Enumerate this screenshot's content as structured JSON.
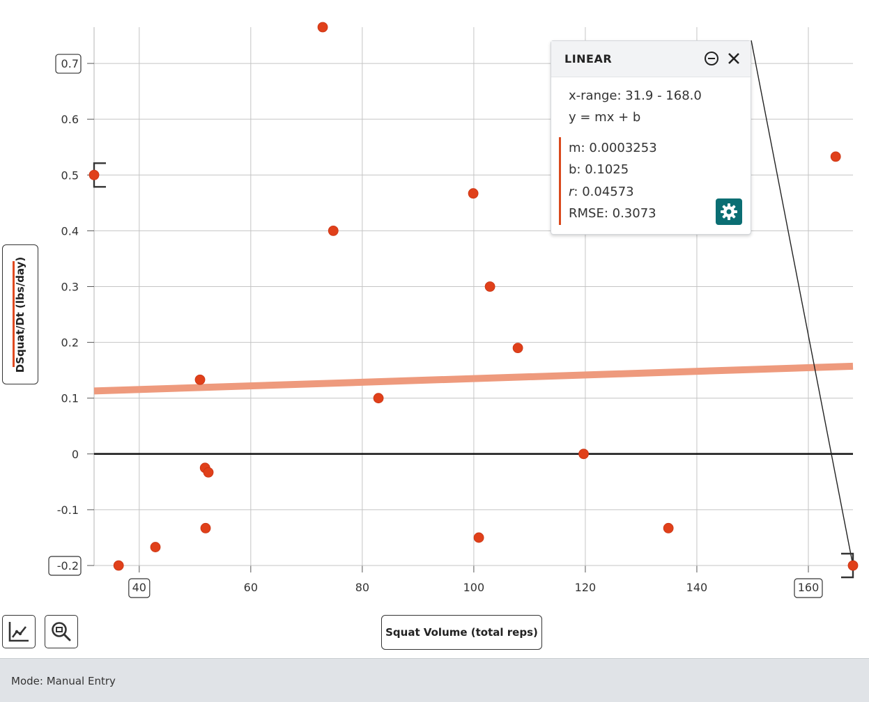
{
  "chart_data": {
    "type": "scatter",
    "xlabel": "Squat Volume (total reps)",
    "ylabel": "DSquat/Dt (lbs/day)",
    "xlim": [
      31.9,
      168.0
    ],
    "ylim": [
      -0.2,
      0.765
    ],
    "x_ticks": [
      40,
      60,
      80,
      100,
      120,
      140,
      160
    ],
    "y_ticks": [
      -0.2,
      -0.1,
      0,
      0.1,
      0.2,
      0.3,
      0.4,
      0.5,
      0.6,
      0.7
    ],
    "x_tick_labels": [
      "40",
      "60",
      "80",
      "100",
      "120",
      "140",
      "160"
    ],
    "y_tick_labels": [
      "-0.2",
      "-0.1",
      "0",
      "0.1",
      "0.2",
      "0.3",
      "0.4",
      "0.5",
      "0.6",
      "0.7"
    ],
    "boxed_x_ticks": [
      40,
      160
    ],
    "boxed_y_ticks": [
      -0.2,
      0.7
    ],
    "grid": true,
    "point_color": "#e0401a",
    "points": [
      {
        "x": 31.9,
        "y": 0.5
      },
      {
        "x": 36.3,
        "y": -0.2
      },
      {
        "x": 42.9,
        "y": -0.167
      },
      {
        "x": 50.9,
        "y": 0.133
      },
      {
        "x": 51.8,
        "y": -0.025
      },
      {
        "x": 52.4,
        "y": -0.033
      },
      {
        "x": 51.9,
        "y": -0.133
      },
      {
        "x": 72.9,
        "y": 0.765
      },
      {
        "x": 74.8,
        "y": 0.4
      },
      {
        "x": 82.9,
        "y": 0.1
      },
      {
        "x": 99.9,
        "y": 0.467
      },
      {
        "x": 102.9,
        "y": 0.3
      },
      {
        "x": 100.9,
        "y": -0.15
      },
      {
        "x": 107.9,
        "y": 0.19
      },
      {
        "x": 119.7,
        "y": 0.0
      },
      {
        "x": 134.9,
        "y": -0.133
      },
      {
        "x": 164.9,
        "y": 0.533
      },
      {
        "x": 168.0,
        "y": -0.2
      }
    ],
    "fit": {
      "type": "linear",
      "m": 0.0003253,
      "b": 0.1025,
      "color": "#ee9a7d"
    },
    "selection_brackets": [
      {
        "x": 31.9,
        "y": 0.5
      },
      {
        "x": 168.0,
        "y": -0.2
      }
    ],
    "connector_end": {
      "x": 168.0,
      "y": -0.2
    }
  },
  "fit_panel": {
    "title": "LINEAR",
    "x_range": "x-range: 31.9 - 168.0",
    "equation": "y = mx + b",
    "m": "m: 0.0003253",
    "b": "b: 0.1025",
    "r_label": "r",
    "r_value": ": 0.04573",
    "rmse": "RMSE: 0.3073",
    "accent_color": "#0b6e73"
  },
  "toolbar": {
    "graph_icon": "graph-settings-icon",
    "zoom_icon": "zoom-fit-icon"
  },
  "status": {
    "mode": "Mode: Manual Entry"
  }
}
